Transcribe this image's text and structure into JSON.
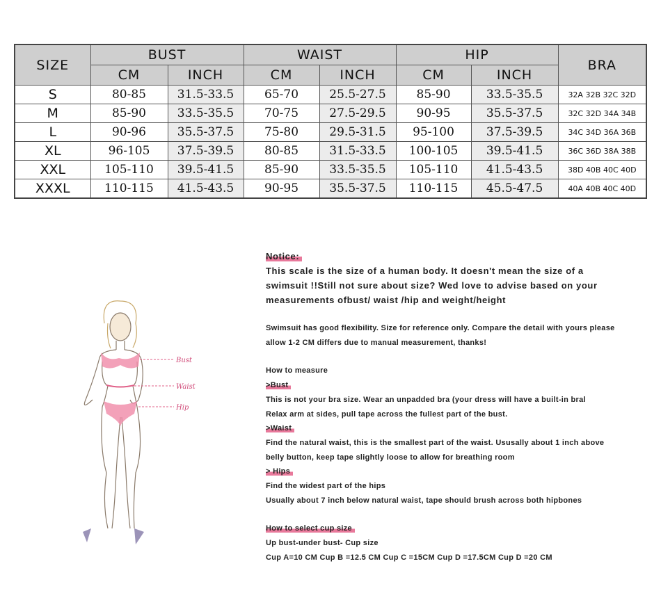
{
  "table": {
    "headers": {
      "size": "SIZE",
      "bust": "BUST",
      "waist": "WAIST",
      "hip": "HIP",
      "bra": "BRA",
      "cm": "CM",
      "inch": "INCH"
    },
    "rows": [
      {
        "size": "S",
        "bust_cm": "80-85",
        "bust_in": "31.5-33.5",
        "waist_cm": "65-70",
        "waist_in": "25.5-27.5",
        "hip_cm": "85-90",
        "hip_in": "33.5-35.5",
        "bra": "32A 32B 32C 32D"
      },
      {
        "size": "M",
        "bust_cm": "85-90",
        "bust_in": "33.5-35.5",
        "waist_cm": "70-75",
        "waist_in": "27.5-29.5",
        "hip_cm": "90-95",
        "hip_in": "35.5-37.5",
        "bra": "32C 32D 34A 34B"
      },
      {
        "size": "L",
        "bust_cm": "90-96",
        "bust_in": "35.5-37.5",
        "waist_cm": "75-80",
        "waist_in": "29.5-31.5",
        "hip_cm": "95-100",
        "hip_in": "37.5-39.5",
        "bra": "34C 34D 36A 36B"
      },
      {
        "size": "XL",
        "bust_cm": "96-105",
        "bust_in": "37.5-39.5",
        "waist_cm": "80-85",
        "waist_in": "31.5-33.5",
        "hip_cm": "100-105",
        "hip_in": "39.5-41.5",
        "bra": "36C 36D 38A 38B"
      },
      {
        "size": "XXL",
        "bust_cm": "105-110",
        "bust_in": "39.5-41.5",
        "waist_cm": "85-90",
        "waist_in": "33.5-35.5",
        "hip_cm": "105-110",
        "hip_in": "41.5-43.5",
        "bra": "38D 40B 40C 40D"
      },
      {
        "size": "XXXL",
        "bust_cm": "110-115",
        "bust_in": "41.5-43.5",
        "waist_cm": "90-95",
        "waist_in": "35.5-37.5",
        "hip_cm": "110-115",
        "hip_in": "45.5-47.5",
        "bra": "40A 40B 40C 40D"
      }
    ]
  },
  "figure": {
    "labels": {
      "bust": "Bust",
      "waist": "Waist",
      "hip": "Hip"
    }
  },
  "notes": {
    "notice_title": "Notice:",
    "notice_lines": [
      "This scale is the size of a human body. It doesn't mean the size of a",
      "swimsuit !!Still not sure about size? Wed love to advise based on your",
      "measurements ofbust/ waist /hip and weight/height"
    ],
    "flex_lines": [
      "Swimsuit has good flexibility. Size for reference only. Compare the detail with yours please",
      "allow 1-2 CM differs due to manual measurement, thanks!"
    ],
    "how_to_measure": "How to measure",
    "bust_title": ">Bust",
    "bust_lines": [
      "This is not your bra size. Wear an unpadded bra (your dress will have a built-in bral",
      "Relax arm at sides, pull tape across the fullest part of the bust."
    ],
    "waist_title": ">Waist",
    "waist_lines": [
      "Find the natural waist, this is the smallest part of the waist. Ususally about 1 inch above",
      "belly button, keep tape slightly loose to allow for breathing room"
    ],
    "hips_title": "> Hips",
    "hips_lines": [
      "Find the widest part of the hips",
      "Usually about 7 inch below natural waist, tape should brush across both hipbones"
    ],
    "cup_title": "How to select cup size",
    "cup_lines": [
      "Up bust-under bust- Cup size",
      "Cup A=10 CM Cup B =12.5 CM Cup C =15CM Cup D =17.5CM Cup D =20 CM"
    ]
  }
}
